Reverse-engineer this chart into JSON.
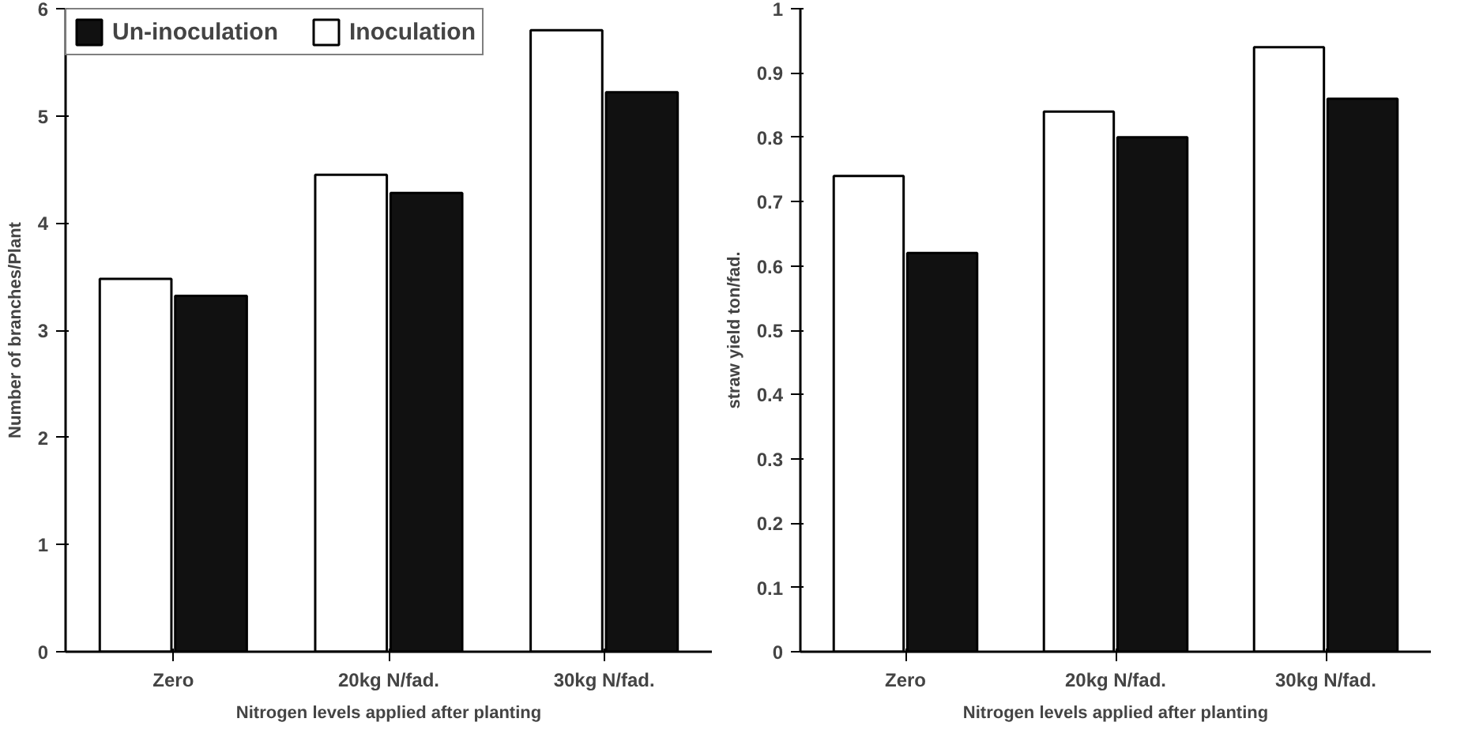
{
  "chart_data": [
    {
      "type": "bar",
      "xlabel": "Nitrogen levels applied after planting",
      "ylabel": "Number of branches/Plant",
      "categories": [
        "Zero",
        "20kg N/fad.",
        "30kg N/fad."
      ],
      "ylim": [
        0,
        6
      ],
      "yticks": [
        0,
        1,
        2,
        3,
        4,
        5,
        6
      ],
      "grid": false,
      "legend": "top",
      "series": [
        {
          "name": "Inoculation",
          "color": "#ffffff",
          "values": [
            3.48,
            4.45,
            5.8
          ]
        },
        {
          "name": "Un-inoculation",
          "color": "#111111",
          "values": [
            3.32,
            4.28,
            5.22
          ]
        }
      ]
    },
    {
      "type": "bar",
      "xlabel": "Nitrogen levels applied after planting",
      "ylabel": "straw yield ton/fad.",
      "categories": [
        "Zero",
        "20kg N/fad.",
        "30kg N/fad."
      ],
      "ylim": [
        0,
        1
      ],
      "yticks": [
        0,
        0.1,
        0.2,
        0.3,
        0.4,
        0.5,
        0.6,
        0.7,
        0.8,
        0.9,
        1
      ],
      "grid": false,
      "series": [
        {
          "color": "#ffffff",
          "values": [
            0.74,
            0.84,
            0.94
          ]
        },
        {
          "color": "#111111",
          "values": [
            0.62,
            0.8,
            0.86
          ]
        }
      ]
    }
  ]
}
